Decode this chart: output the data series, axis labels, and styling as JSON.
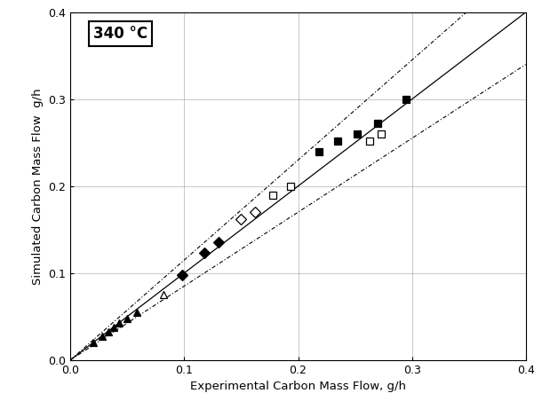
{
  "title": "340 °C",
  "xlabel": "Experimental Carbon Mass Flow, g/h",
  "ylabel": "Simulated Carbon Mass Flow  g/h",
  "xlim": [
    0.0,
    0.4
  ],
  "ylim": [
    0.0,
    0.4
  ],
  "xticks": [
    0.0,
    0.1,
    0.2,
    0.3,
    0.4
  ],
  "yticks": [
    0.0,
    0.1,
    0.2,
    0.3,
    0.4
  ],
  "parity_line": [
    0.0,
    0.4
  ],
  "plus15_slope": 1.15,
  "minus15_slope": 0.85,
  "series": [
    {
      "name": "filled_triangle",
      "marker": "^",
      "fillstyle": "full",
      "x": [
        0.02,
        0.028,
        0.033,
        0.038,
        0.043,
        0.05,
        0.058
      ],
      "y": [
        0.02,
        0.027,
        0.032,
        0.037,
        0.043,
        0.048,
        0.055
      ]
    },
    {
      "name": "open_triangle",
      "marker": "^",
      "fillstyle": "none",
      "x": [
        0.082
      ],
      "y": [
        0.075
      ]
    },
    {
      "name": "filled_diamond",
      "marker": "D",
      "fillstyle": "full",
      "x": [
        0.098,
        0.118,
        0.13
      ],
      "y": [
        0.098,
        0.123,
        0.135
      ]
    },
    {
      "name": "open_diamond",
      "marker": "D",
      "fillstyle": "none",
      "x": [
        0.15,
        0.162
      ],
      "y": [
        0.162,
        0.17
      ]
    },
    {
      "name": "open_square",
      "marker": "s",
      "fillstyle": "none",
      "x": [
        0.178,
        0.193,
        0.263,
        0.273
      ],
      "y": [
        0.19,
        0.2,
        0.252,
        0.26
      ]
    },
    {
      "name": "filled_square",
      "marker": "s",
      "fillstyle": "full",
      "x": [
        0.218,
        0.235,
        0.252,
        0.27,
        0.295
      ],
      "y": [
        0.24,
        0.252,
        0.26,
        0.272,
        0.3
      ]
    }
  ]
}
